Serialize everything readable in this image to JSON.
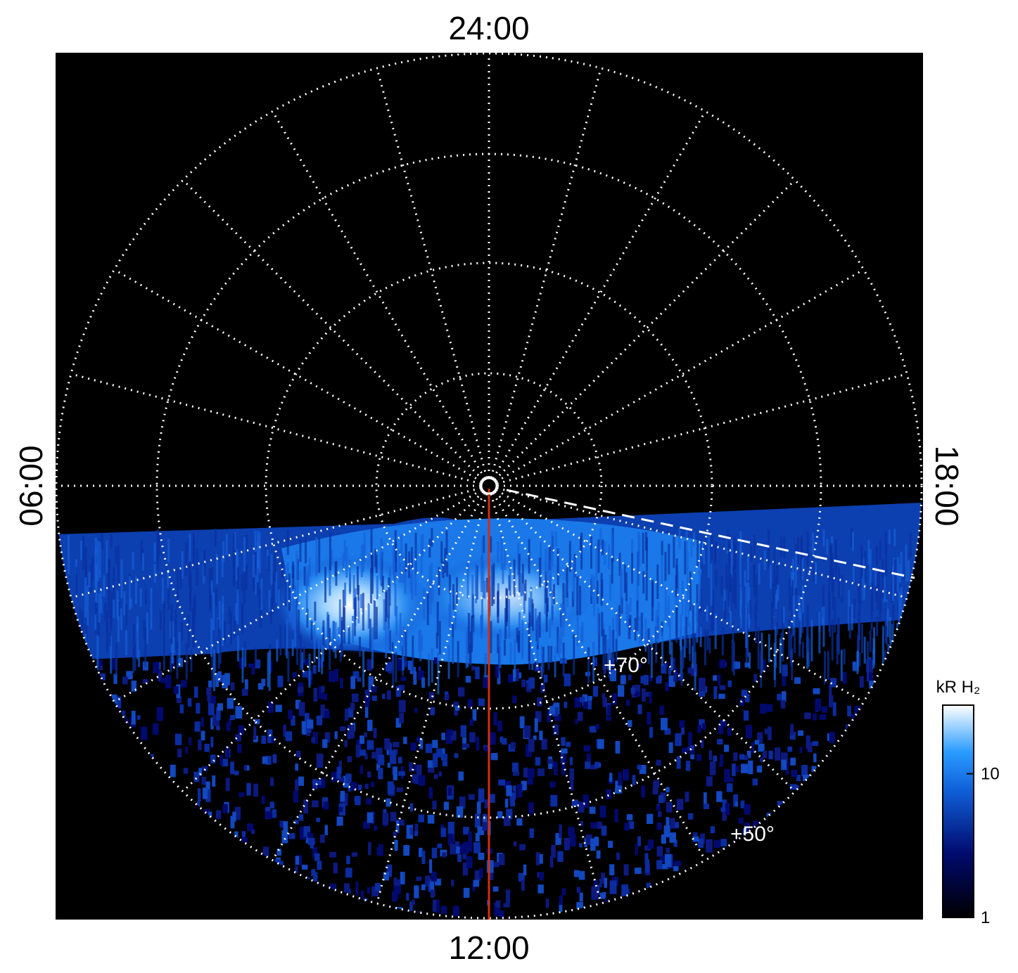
{
  "chart_data": {
    "type": "polar-image",
    "local_time_labels": {
      "top": "24:00",
      "bottom": "12:00",
      "left": "06:00",
      "right": "18:00"
    },
    "latitude_labels": [
      "+70°",
      "+50°"
    ],
    "colorbar": {
      "title": "kR H₂",
      "scale": "log",
      "lim": [
        1,
        30
      ],
      "ticks": [
        1,
        10
      ]
    }
  }
}
